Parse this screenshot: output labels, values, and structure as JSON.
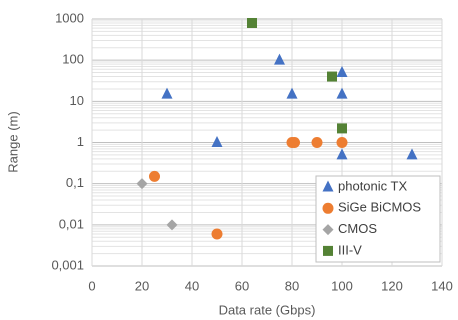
{
  "chart_data": {
    "type": "scatter",
    "x_label": "Data rate (Gbps)",
    "y_label": "Range (m)",
    "xlim": [
      0,
      140
    ],
    "xticks": [
      0,
      20,
      40,
      60,
      80,
      100,
      120,
      140
    ],
    "ylim": [
      0.001,
      1000
    ],
    "log_y": true,
    "yticks": [
      {
        "value": 0.001,
        "label": "0,001"
      },
      {
        "value": 0.01,
        "label": "0,01"
      },
      {
        "value": 0.1,
        "label": "0,1"
      },
      1,
      10,
      100,
      1000
    ],
    "grid": true,
    "legend": "lower right",
    "series": [
      {
        "name": "photonic TX",
        "color": "#4472c4",
        "marker": "triangle",
        "x": [
          30,
          50,
          75,
          80,
          100,
          100,
          100,
          128
        ],
        "values": [
          15,
          1,
          100,
          15,
          50,
          15,
          0.5,
          0.5
        ]
      },
      {
        "name": "SiGe BiCMOS",
        "color": "#ed7d31",
        "marker": "circle",
        "x": [
          25,
          50,
          80,
          81,
          90,
          100
        ],
        "values": [
          0.15,
          0.006,
          1,
          1,
          1,
          1
        ]
      },
      {
        "name": "CMOS",
        "color": "#a5a5a5",
        "marker": "diamond",
        "x": [
          20,
          32
        ],
        "values": [
          0.1,
          0.01
        ]
      },
      {
        "name": "III-V",
        "color": "#548235",
        "marker": "square",
        "x": [
          64,
          96,
          100
        ],
        "values": [
          800,
          40,
          2.2
        ]
      }
    ]
  }
}
